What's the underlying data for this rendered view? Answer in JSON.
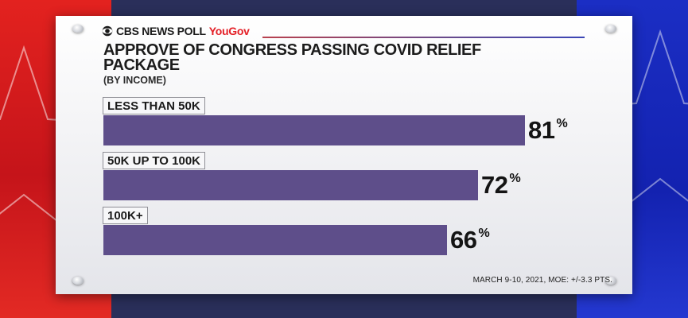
{
  "brand": {
    "network": "CBS NEWS POLL",
    "pollster": "YouGov"
  },
  "chart_data": {
    "type": "bar",
    "orientation": "horizontal",
    "title": "APPROVE OF CONGRESS PASSING COVID RELIEF PACKAGE",
    "subtitle": "(BY INCOME)",
    "categories": [
      "LESS THAN 50K",
      "50K UP TO 100K",
      "100K+"
    ],
    "values": [
      81,
      72,
      66
    ],
    "value_suffix": "%",
    "xlim": [
      0,
      100
    ],
    "grid": false,
    "legend": "none",
    "bar_color": "#5e4e8a"
  },
  "footnote": "MARCH 9-10, 2021, MOE: +/-3.3 PTS.",
  "colors": {
    "left_accent": "#e3221f",
    "right_accent": "#1b2ec4",
    "brand_red": "#e41f26"
  }
}
